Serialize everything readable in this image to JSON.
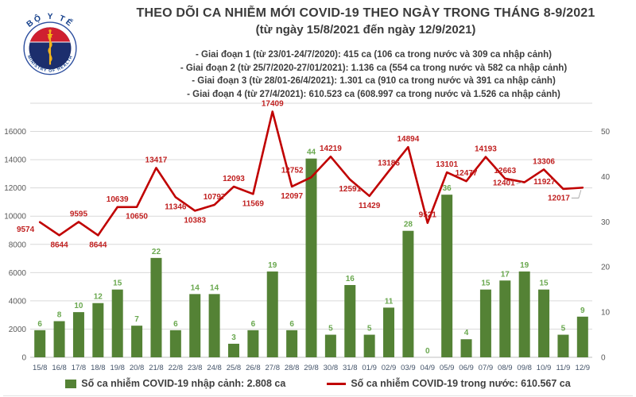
{
  "header": {
    "logo": {
      "top_text": "BỘ Y TẾ",
      "bottom_text": "MINISTRY OF HEALTH"
    },
    "title": "THEO DÕI CA NHIỄM MỚI COVID-19 THEO NGÀY TRONG THÁNG 8-9/2021",
    "subtitle": "(từ ngày 15/8/2021 đến ngày 12/9/2021)",
    "notes": [
      "- Giai đoạn 1 (từ 23/01-24/7/2020): 415 ca (106 ca trong nước và 309 ca nhập cảnh)",
      "- Giai đoạn 2 (từ 25/7/2020-27/01/2021): 1.136 ca (554 ca trong nước và 582 ca nhập cảnh)",
      "- Giai đoạn 3 (từ 28/01-26/4/2021): 1.301 ca (910 ca trong nước và 391 ca nhập cảnh)",
      "- Giai đoạn 4 (từ 27/4/2021): 610.523 ca (608.997 ca trong nước và 1.526 ca nhập cảnh)"
    ]
  },
  "legend": [
    {
      "marker": "square",
      "color": "#548235",
      "label": "Số ca nhiễm COVID-19 nhập cảnh: 2.808 ca"
    },
    {
      "marker": "line",
      "color": "#c00000",
      "label": "Số ca nhiễm COVID-19 trong nước: 610.567 ca"
    }
  ],
  "chart_data": {
    "type": "combo-bar-line",
    "title": "THEO DÕI CA NHIỄM MỚI COVID-19 THEO NGÀY TRONG THÁNG 8-9/2021",
    "grid": true,
    "categories": [
      "15/8",
      "16/8",
      "17/8",
      "18/8",
      "19/8",
      "20/8",
      "21/8",
      "22/8",
      "23/8",
      "24/8",
      "25/8",
      "26/8",
      "27/8",
      "28/8",
      "29/8",
      "30/8",
      "31/8",
      "01/9",
      "02/9",
      "03/9",
      "04/9",
      "05/9",
      "06/9",
      "07/9",
      "08/9",
      "09/8",
      "10/9",
      "11/9",
      "12/9"
    ],
    "series": [
      {
        "name": "Số ca nhiễm COVID-19 nhập cảnh",
        "type": "bar",
        "axis": "right",
        "color": "#548235",
        "label_color": "#6aa84f",
        "values": [
          6,
          8,
          10,
          12,
          15,
          7,
          22,
          6,
          14,
          14,
          3,
          6,
          19,
          6,
          44,
          5,
          16,
          5,
          11,
          28,
          0,
          36,
          4,
          15,
          17,
          19,
          15,
          5,
          9
        ]
      },
      {
        "name": "Số ca nhiễm COVID-19 trong nước",
        "type": "line",
        "axis": "left",
        "color": "#c00000",
        "label_color": "#c02020",
        "values": [
          9574,
          8644,
          9595,
          8644,
          10639,
          10650,
          13417,
          11346,
          10383,
          10797,
          12093,
          11569,
          17409,
          12097,
          12752,
          14219,
          12591,
          11429,
          13186,
          14894,
          9521,
          13101,
          12477,
          14193,
          12663,
          12401,
          13306,
          11927,
          12017
        ],
        "label_pos": [
          "bl",
          "b",
          "a",
          "b",
          "a",
          "b",
          "a",
          "b",
          "b",
          "a",
          "a",
          "b",
          "a",
          "b",
          "al",
          "a",
          "b",
          "b",
          "a",
          "a",
          "a",
          "a",
          "a",
          "a",
          "a",
          "l",
          "a",
          "al",
          "lb"
        ],
        "leader_indices": [
          25,
          28
        ]
      }
    ],
    "left_axis": {
      "min": 0,
      "max": 18000,
      "tick_step": 2000,
      "tick_labels": [
        "0",
        "2000",
        "4000",
        "6000",
        "8000",
        "10000",
        "12000",
        "14000",
        "16000"
      ]
    },
    "right_axis": {
      "ticks": [
        0,
        10,
        20,
        30,
        40,
        50
      ],
      "scale_to_left": 320
    },
    "colors": {
      "gridline": "#d9d9d9",
      "axis_line": "#bfbfbf",
      "axis_text": "#595959",
      "x_text": "#44546a"
    }
  }
}
